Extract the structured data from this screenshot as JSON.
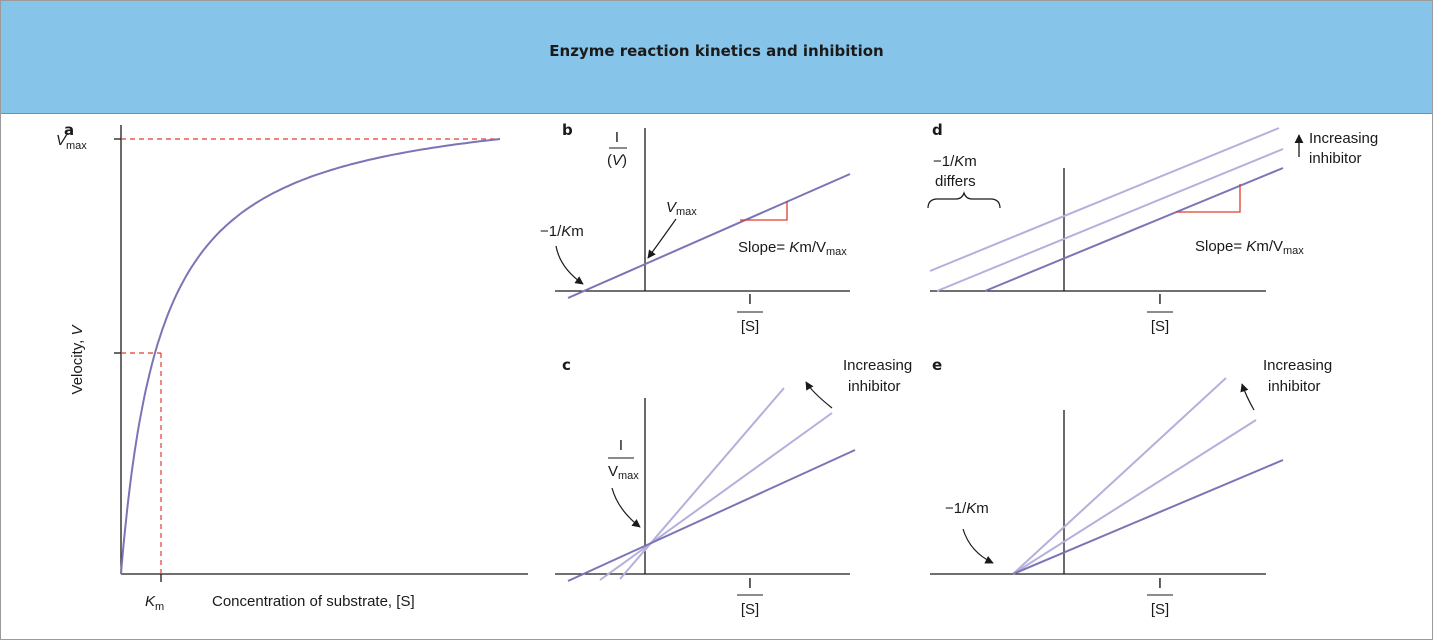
{
  "title": "Enzyme reaction kinetics and inhibition",
  "colors": {
    "header_bg": "#87c4ea",
    "curve_main": "#7b74b6",
    "curve_light": "#b4b0dc",
    "guide_red": "#e03c31",
    "axis": "#1a1a1a"
  },
  "panels": {
    "a": {
      "letter": "a",
      "ylabel_text": "Velocity, ",
      "ylabel_var": "V",
      "xlabel": "Concentration of substrate, [S]",
      "vmax_var": "V",
      "vmax_sub": "max",
      "km_var": "K",
      "km_sub": "m"
    },
    "b": {
      "letter": "b",
      "y_num": "I",
      "y_den_var": "V",
      "y_den_open": "(",
      "y_den_close": ")",
      "x_num": "I",
      "x_den": "[S]",
      "intercept_var": "V",
      "intercept_sub": "max",
      "xint_prefix": "−1/",
      "xint_var": "K",
      "xint_sub": "m",
      "slope_prefix": "Slope= ",
      "slope_var": "K",
      "slope_km": "m",
      "slope_slash": "/V",
      "slope_sub": "max"
    },
    "c": {
      "letter": "c",
      "y_num": "I",
      "y_den": "V",
      "y_den_sub": "max",
      "x_num": "I",
      "x_den": "[S]",
      "inhib_line1": "Increasing",
      "inhib_line2": "inhibitor"
    },
    "d": {
      "letter": "d",
      "x_num": "I",
      "x_den": "[S]",
      "km_prefix": "−1/",
      "km_var": "K",
      "km_sub": "m",
      "km_note": "differs",
      "slope_prefix": "Slope= ",
      "slope_var": "K",
      "slope_km": "m",
      "slope_slash": "/V",
      "slope_sub": "max",
      "inhib_line1": "Increasing",
      "inhib_line2": "inhibitor"
    },
    "e": {
      "letter": "e",
      "x_num": "I",
      "x_den": "[S]",
      "km_prefix": "−1/",
      "km_var": "K",
      "km_sub": "m",
      "inhib_line1": "Increasing",
      "inhib_line2": "inhibitor"
    }
  }
}
